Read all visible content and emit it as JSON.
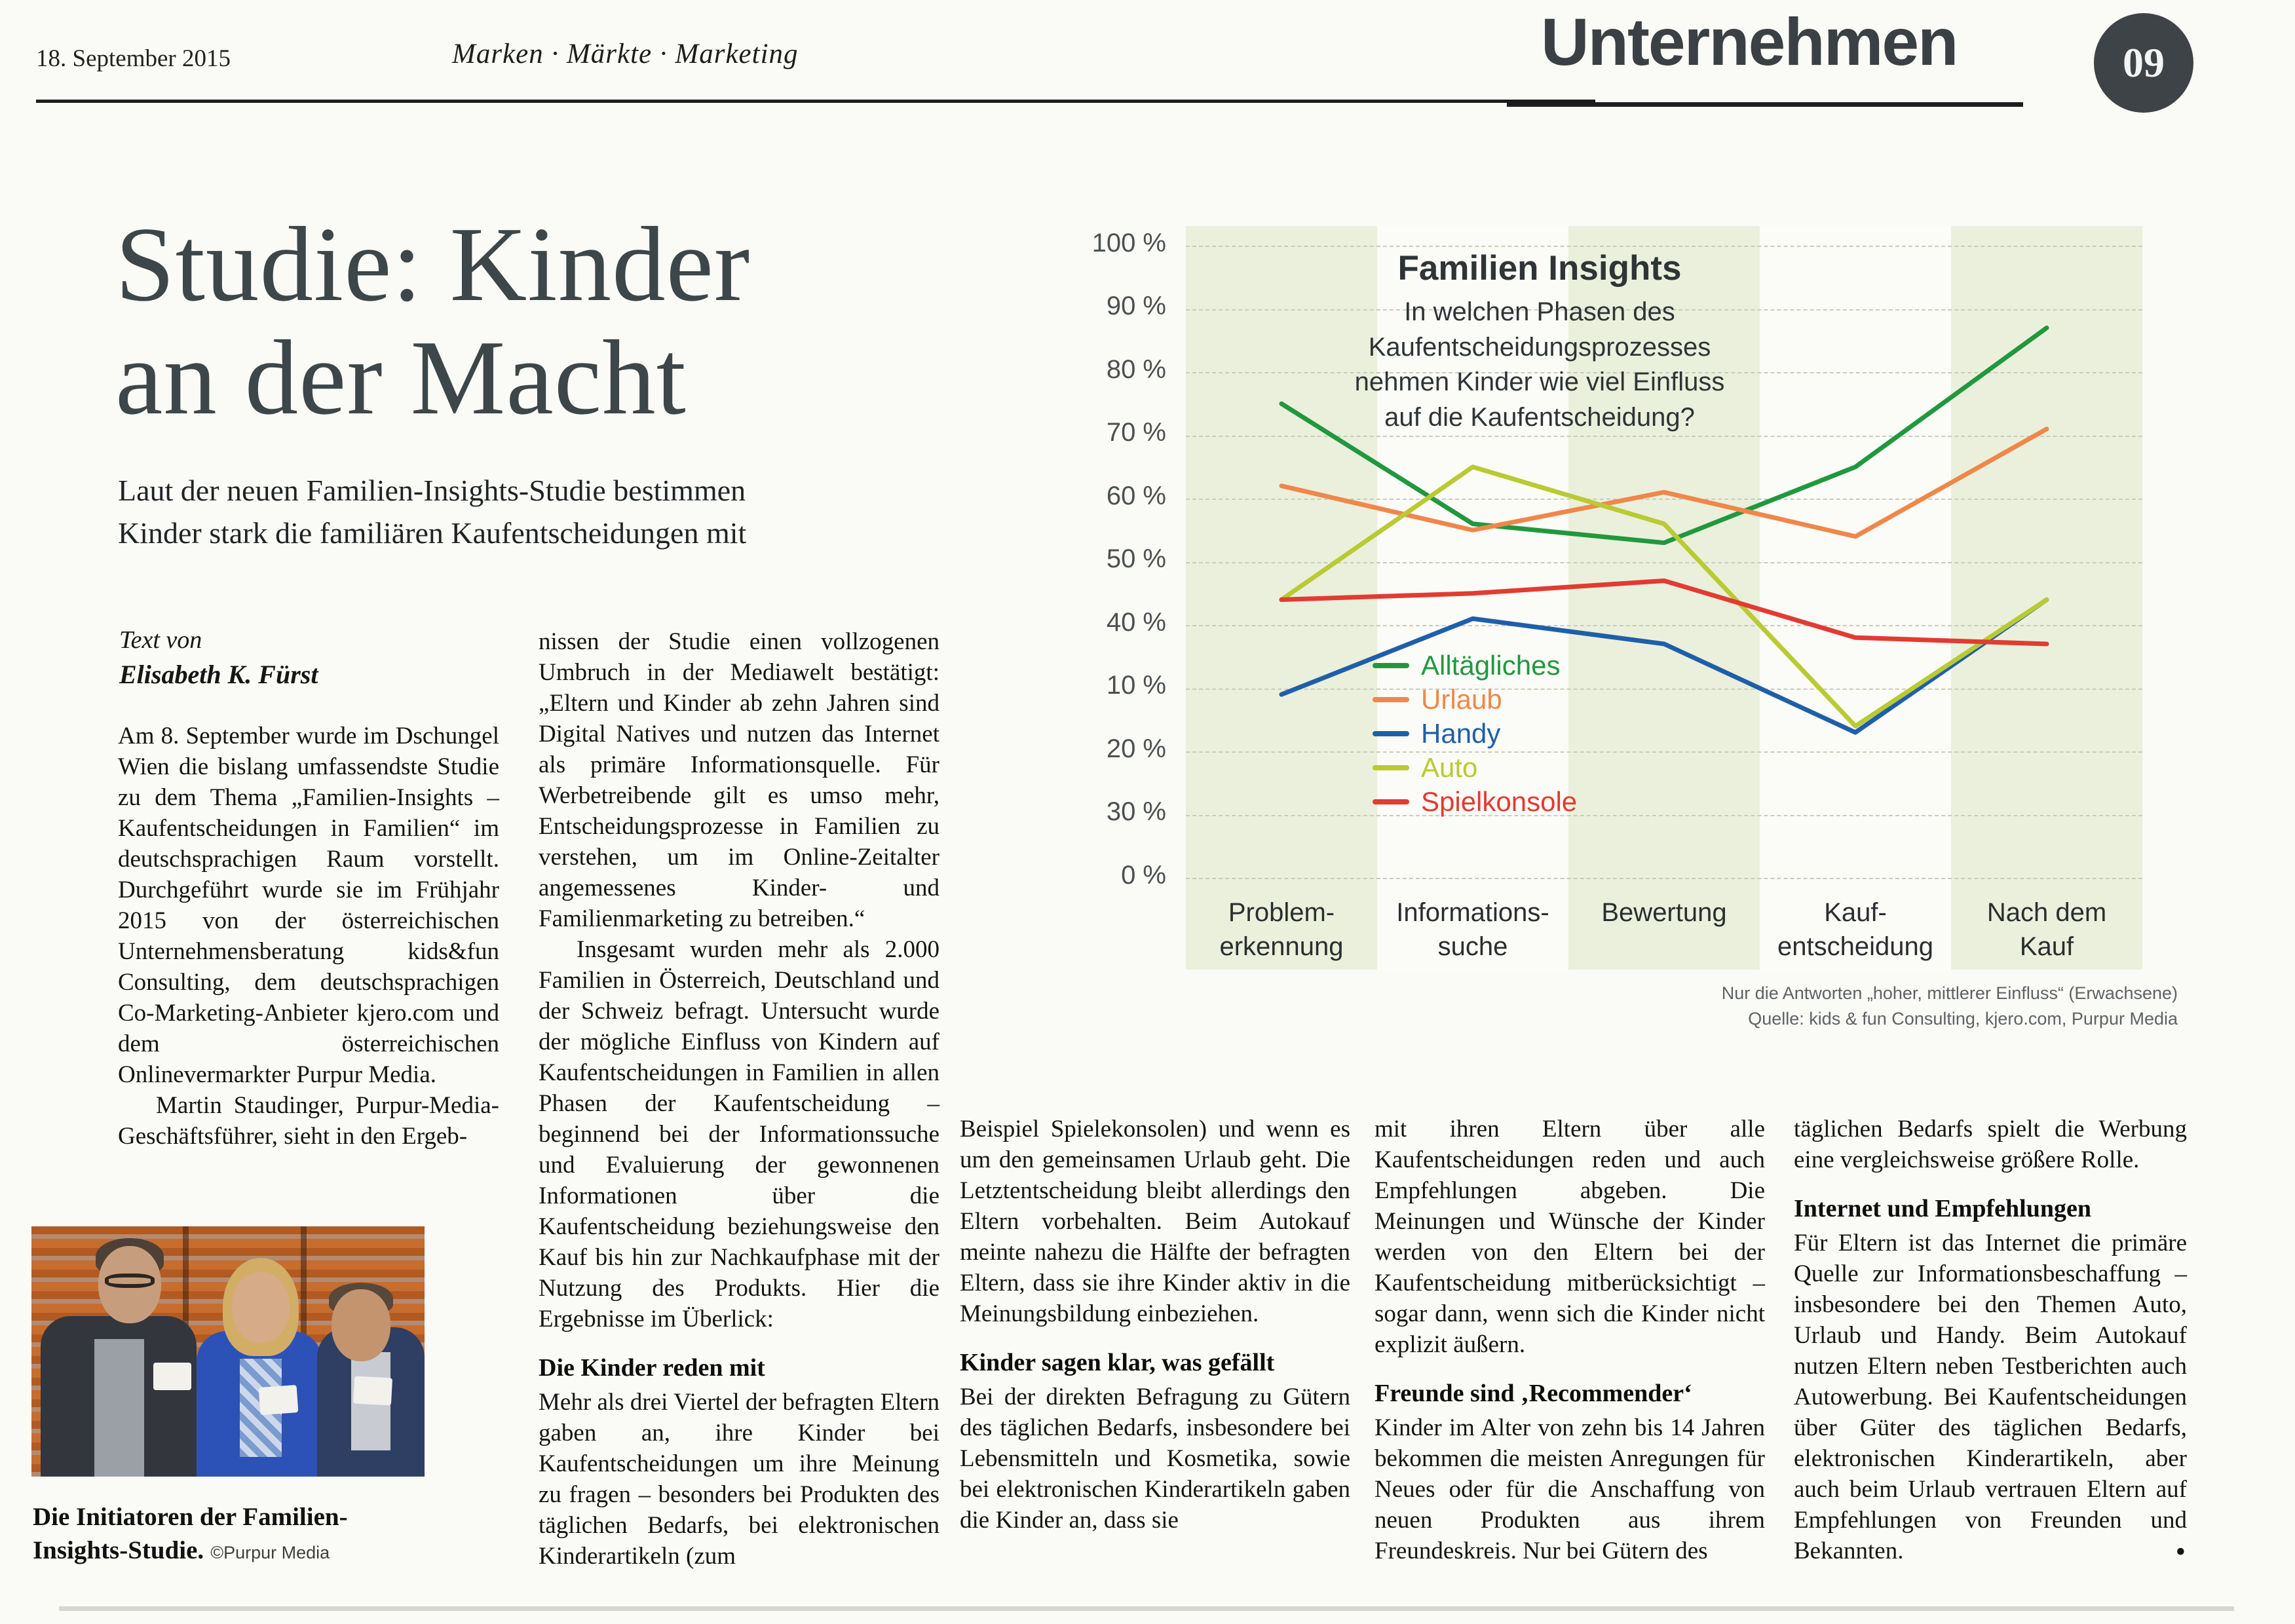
{
  "header": {
    "date": "18. September 2015",
    "section": "Marken · Märkte · Marketing",
    "page_title": "Unternehmen",
    "page_number": "09"
  },
  "article": {
    "headline": "Studie: Kinder\nan der Macht",
    "subtitle": "Laut der neuen Familien-Insights-Studie bestimmen\nKinder stark die familiären Kaufentscheidungen mit",
    "byline_label": "Text von",
    "byline_author": "Elisabeth K. Fürst",
    "col1_para1": "Am 8. September wurde im Dschungel Wien die bislang umfassendste Studie zu dem Thema „Familien-Insights – Kaufentscheidungen in Familien“ im deutschsprachigen Raum vorstellt. Durchgeführt wurde sie im Frühjahr 2015 von der österreichischen Unternehmensberatung kids&fun Consulting, dem deutschsprachigen Co-Marketing-Anbieter kjero.com und dem österreichischen Onlinevermarkter Purpur Media.",
    "col1_para2": "Martin Staudinger, Purpur-Media-Geschäftsführer, sieht in den Ergeb-",
    "col2_para1": "nissen der Studie einen vollzogenen Umbruch in der Mediawelt bestätigt: „Eltern und Kinder ab zehn Jahren sind Digital Natives und nutzen das Internet als primäre Informationsquelle. Für Werbetreibende gilt es umso mehr, Entscheidungsprozesse in Familien zu verstehen, um im Online-Zeitalter angemessenes Kinder- und Familienmarketing zu betreiben.“",
    "col2_para2": "Insgesamt wurden mehr als 2.000 Familien in Österreich, Deutschland und der Schweiz befragt. Untersucht wurde der mögliche Einfluss von Kindern auf Kaufentscheidungen in Familien in allen Phasen der Kaufentscheidung – beginnend bei der Informationssuche und Evaluierung der gewonnenen Informationen über die Kaufentscheidung beziehungsweise den Kauf bis hin zur Nachkaufphase mit der Nutzung des Produkts. Hier die Ergebnisse im Überlick:",
    "col2_heading": "Die Kinder reden mit",
    "col2_para3": "Mehr als drei Viertel der befragten Eltern gaben an, ihre Kinder bei Kaufentscheidungen um ihre Meinung zu fragen – besonders bei Produkten des täglichen Bedarfs, bei elektronischen Kinderartikeln (zum",
    "col3_para1": "Beispiel Spielekonsolen) und wenn es um den gemeinsamen Urlaub geht. Die Letztentscheidung bleibt allerdings den Eltern vorbehalten. Beim Autokauf meinte nahezu die Hälfte der befragten Eltern, dass sie ihre Kinder aktiv in die Meinungsbildung einbeziehen.",
    "col3_heading": "Kinder sagen klar, was gefällt",
    "col3_para2": "Bei der direkten Befragung zu Gütern des täglichen Bedarfs, insbesondere bei Lebensmitteln und Kosmetika, sowie bei elektronischen Kinderartikeln gaben die Kinder an, dass sie",
    "col4_para1": "mit ihren Eltern über alle Kaufentscheidungen reden und auch Empfehlungen abgeben. Die Meinungen und Wünsche der Kinder werden von den Eltern bei der Kaufentscheidung mitberücksichtigt – sogar dann, wenn sich die Kinder nicht explizit äußern.",
    "col4_heading": "Freunde sind ‚Recommender‘",
    "col4_para2": "Kinder im Alter von zehn bis 14 Jahren bekommen die meisten Anregungen für Neues oder für die Anschaffung von neuen Produkten aus ihrem Freundeskreis. Nur bei Gütern des",
    "col5_para1": "täglichen Bedarfs spielt die Werbung eine vergleichsweise größere Rolle.",
    "col5_heading": "Internet und Empfehlungen",
    "col5_para2": "Für Eltern ist das Internet die primäre Quelle zur Informationsbeschaffung – insbesondere bei den Themen Auto, Urlaub und Handy. Beim Autokauf nutzen Eltern neben Testberichten auch Autowerbung. Bei Kaufentscheidungen über Güter des täglichen Bedarfs, elektronischen Kinderartikeln, aber auch beim Urlaub vertrauen Eltern auf Empfehlungen von Freunden und Bekannten.",
    "end_mark": "•"
  },
  "photo": {
    "caption_bold": "Die Initiatoren der Familien-Insights-Studie.",
    "caption_credit": "©Purpur Media"
  },
  "chart_data": {
    "type": "line",
    "title": "Familien Insights",
    "subtitle": "In welchen Phasen des\nKaufentscheidungsprozesses\nnehmen Kinder wie viel Einfluss\nauf die Kaufentscheidung?",
    "categories": [
      "Problemerkennung",
      "Informationssuche",
      "Bewertung",
      "Kaufentscheidung",
      "Nach dem Kauf"
    ],
    "categories_display": [
      "Problem-\nerkennung",
      "Informations-\nsuche",
      "Bewertung",
      "Kauf-\nentscheidung",
      "Nach dem\nKauf"
    ],
    "y_tick_labels_top_to_bottom": [
      "100 %",
      "90 %",
      "80 %",
      "70 %",
      "60 %",
      "50 %",
      "40 %",
      "10 %",
      "20 %",
      "30 %",
      "0 %"
    ],
    "ylim": [
      0,
      100
    ],
    "grid": true,
    "legend_position": "center-inside",
    "unit": "percent (estimated from plotted line positions)",
    "series": [
      {
        "name": "Alltägliches",
        "color": "#21983e",
        "values": [
          75,
          56,
          53,
          65,
          87
        ]
      },
      {
        "name": "Urlaub",
        "color": "#f0874a",
        "values": [
          62,
          55,
          61,
          54,
          71
        ]
      },
      {
        "name": "Handy",
        "color": "#1f5fa9",
        "values": [
          29,
          41,
          37,
          23,
          44
        ]
      },
      {
        "name": "Auto",
        "color": "#b9ca33",
        "values": [
          44,
          65,
          56,
          24,
          44
        ]
      },
      {
        "name": "Spielkonsole",
        "color": "#e23b32",
        "values": [
          44,
          45,
          47,
          38,
          37
        ]
      }
    ],
    "band_colors": [
      "#eaf0db",
      "#fbfbf7",
      "#eaf0db",
      "#fbfbf7",
      "#eaf0db"
    ],
    "note_line1": "Nur die Antworten „hoher, mittlerer Einfluss“ (Erwachsene)",
    "note_line2": "Quelle: kids & fun Consulting, kjero.com,  Purpur Media"
  }
}
